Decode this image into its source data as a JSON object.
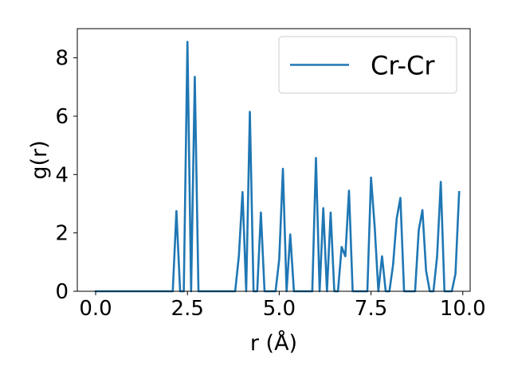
{
  "chart_data": {
    "type": "line",
    "xlabel": "r (Å)",
    "ylabel": "g(r)",
    "xlim": [
      -0.5,
      10.2
    ],
    "ylim": [
      0,
      9.0
    ],
    "xticks": [
      0.0,
      2.5,
      5.0,
      7.5,
      10.0
    ],
    "xtick_labels": [
      "0.0",
      "2.5",
      "5.0",
      "7.5",
      "10.0"
    ],
    "yticks": [
      0,
      2,
      4,
      6,
      8
    ],
    "ytick_labels": [
      "0",
      "2",
      "4",
      "6",
      "8"
    ],
    "grid": false,
    "legend_position": "top-right",
    "series": [
      {
        "name": "Cr-Cr",
        "color": "#1f77b4",
        "points": [
          [
            0.0,
            0.0
          ],
          [
            0.1,
            0.0
          ],
          [
            0.2,
            0.0
          ],
          [
            0.3,
            0.0
          ],
          [
            0.4,
            0.0
          ],
          [
            0.5,
            0.0
          ],
          [
            0.6,
            0.0
          ],
          [
            0.7,
            0.0
          ],
          [
            0.8,
            0.0
          ],
          [
            0.9,
            0.0
          ],
          [
            1.0,
            0.0
          ],
          [
            1.1,
            0.0
          ],
          [
            1.2,
            0.0
          ],
          [
            1.3,
            0.0
          ],
          [
            1.4,
            0.0
          ],
          [
            1.5,
            0.0
          ],
          [
            1.6,
            0.0
          ],
          [
            1.7,
            0.0
          ],
          [
            1.8,
            0.0
          ],
          [
            1.9,
            0.0
          ],
          [
            2.0,
            0.0
          ],
          [
            2.1,
            0.0
          ],
          [
            2.2,
            2.75
          ],
          [
            2.3,
            0.0
          ],
          [
            2.4,
            0.0
          ],
          [
            2.5,
            8.55
          ],
          [
            2.6,
            0.0
          ],
          [
            2.7,
            7.35
          ],
          [
            2.8,
            0.0
          ],
          [
            2.9,
            0.0
          ],
          [
            3.0,
            0.0
          ],
          [
            3.1,
            0.0
          ],
          [
            3.2,
            0.0
          ],
          [
            3.3,
            0.0
          ],
          [
            3.4,
            0.0
          ],
          [
            3.5,
            0.0
          ],
          [
            3.6,
            0.0
          ],
          [
            3.7,
            0.0
          ],
          [
            3.8,
            0.0
          ],
          [
            3.9,
            1.2
          ],
          [
            4.0,
            3.4
          ],
          [
            4.1,
            0.0
          ],
          [
            4.2,
            6.15
          ],
          [
            4.3,
            0.0
          ],
          [
            4.4,
            0.0
          ],
          [
            4.5,
            2.7
          ],
          [
            4.6,
            0.0
          ],
          [
            4.7,
            0.0
          ],
          [
            4.8,
            0.0
          ],
          [
            4.9,
            0.0
          ],
          [
            5.0,
            1.1
          ],
          [
            5.1,
            4.2
          ],
          [
            5.2,
            0.0
          ],
          [
            5.3,
            1.95
          ],
          [
            5.4,
            0.0
          ],
          [
            5.5,
            0.0
          ],
          [
            5.6,
            0.0
          ],
          [
            5.7,
            0.0
          ],
          [
            5.8,
            0.0
          ],
          [
            5.9,
            0.0
          ],
          [
            6.0,
            4.57
          ],
          [
            6.1,
            0.0
          ],
          [
            6.2,
            2.85
          ],
          [
            6.3,
            0.0
          ],
          [
            6.4,
            2.7
          ],
          [
            6.5,
            0.0
          ],
          [
            6.6,
            0.0
          ],
          [
            6.7,
            1.52
          ],
          [
            6.8,
            1.2
          ],
          [
            6.9,
            3.45
          ],
          [
            7.0,
            0.0
          ],
          [
            7.1,
            0.0
          ],
          [
            7.2,
            0.0
          ],
          [
            7.3,
            0.0
          ],
          [
            7.4,
            0.0
          ],
          [
            7.5,
            3.9
          ],
          [
            7.6,
            2.2
          ],
          [
            7.7,
            0.0
          ],
          [
            7.8,
            1.2
          ],
          [
            7.9,
            0.0
          ],
          [
            8.0,
            0.0
          ],
          [
            8.1,
            0.9
          ],
          [
            8.2,
            2.5
          ],
          [
            8.3,
            3.2
          ],
          [
            8.4,
            0.0
          ],
          [
            8.5,
            0.0
          ],
          [
            8.6,
            0.0
          ],
          [
            8.7,
            0.0
          ],
          [
            8.8,
            2.1
          ],
          [
            8.9,
            2.78
          ],
          [
            9.0,
            0.7
          ],
          [
            9.1,
            0.0
          ],
          [
            9.2,
            0.0
          ],
          [
            9.3,
            1.2
          ],
          [
            9.4,
            3.75
          ],
          [
            9.5,
            0.0
          ],
          [
            9.6,
            0.0
          ],
          [
            9.7,
            0.0
          ],
          [
            9.8,
            0.6
          ],
          [
            9.9,
            3.4
          ]
        ]
      }
    ]
  }
}
